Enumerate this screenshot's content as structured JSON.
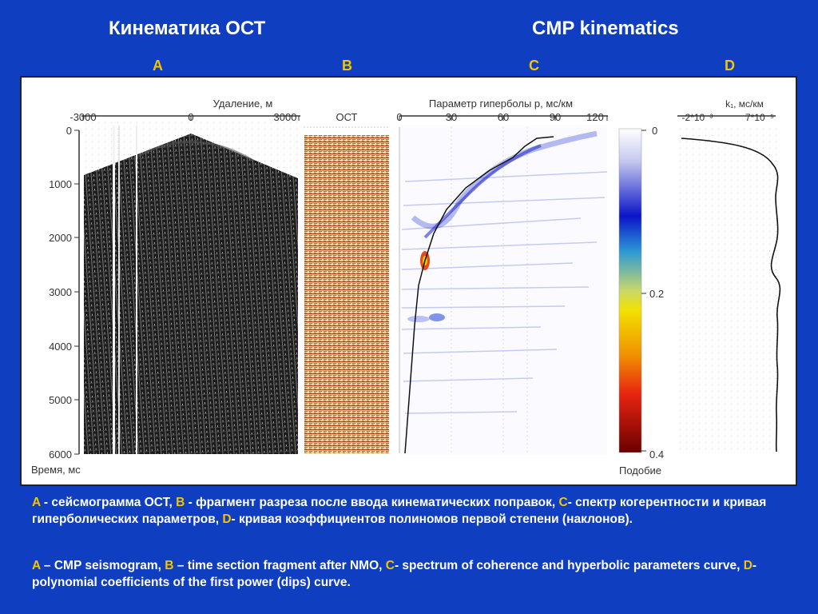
{
  "titles": {
    "ru": "Кинематика ОСТ",
    "en": "CMP kinematics"
  },
  "panel_letters": [
    "A",
    "B",
    "C",
    "D"
  ],
  "panel_a": {
    "top_axis_label": "Удаление, м",
    "top_ticks": [
      "-3000",
      "0",
      "3000"
    ],
    "left_ticks": [
      "0",
      "1000",
      "2000",
      "3000",
      "4000",
      "5000",
      "6000"
    ],
    "bottom_label": "Время, мс"
  },
  "panel_b": {
    "label": "ОСТ"
  },
  "panel_c": {
    "top_axis_label": "Параметр гиперболы p, мс/км",
    "top_ticks": [
      "0",
      "30",
      "60",
      "90",
      "120"
    ],
    "colorbar_ticks": [
      "0",
      "0.2",
      "0.4"
    ],
    "colorbar_label": "Подобие"
  },
  "panel_d": {
    "top_axis_label": "k₁, мс/км",
    "ticks": [
      "-2*10⁻³",
      "7*10⁻⁵"
    ]
  },
  "caption_ru": {
    "k1": "A",
    "t1": " - сейсмограмма ОСТ, ",
    "k2": "B",
    "t2": " - фрагмент разреза после ввода кинематических поправок, ",
    "k3": "C",
    "t3": "- спектр когерентности и кривая гиперболических параметров, ",
    "k4": "D",
    "t4": "- кривая коэффициентов полиномов первой степени (наклонов)."
  },
  "caption_en": {
    "k1": "A",
    "t1": " – CMP seismogram, ",
    "k2": "B",
    "t2": " – time section fragment after NMO, ",
    "k3": "C",
    "t3": "- spectrum of coherence and hyperbolic parameters curve, ",
    "k4": "D",
    "t4": "- polynomial coefficients of the first power (dips) curve."
  }
}
